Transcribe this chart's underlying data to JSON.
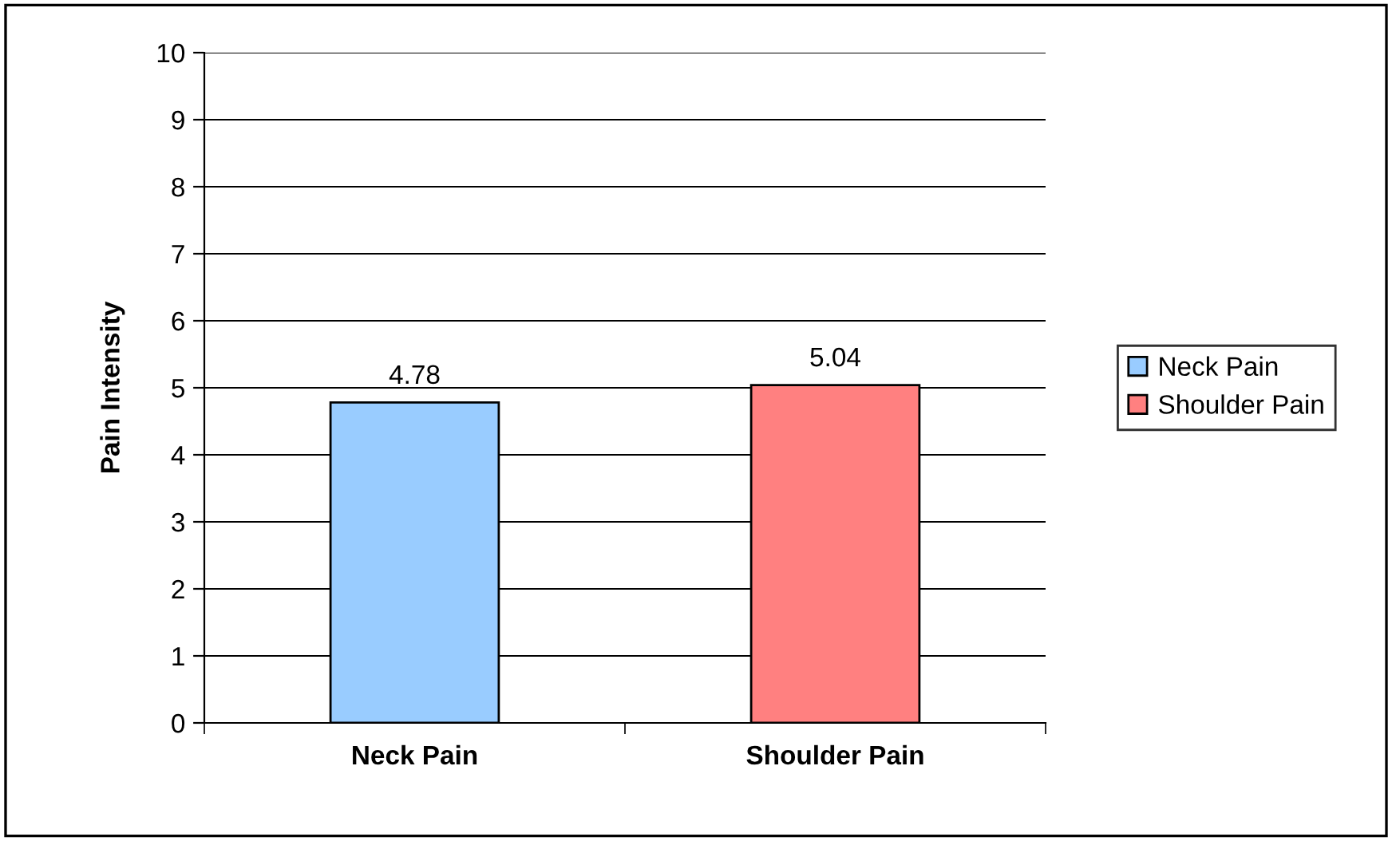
{
  "chart_data": {
    "type": "bar",
    "ylabel": "Pain Intensity",
    "categories": [
      "Neck Pain",
      "Shoulder Pain"
    ],
    "series": [
      {
        "name": "Neck Pain",
        "color": "#99ccff",
        "values": [
          4.78,
          null
        ]
      },
      {
        "name": "Shoulder Pain",
        "color": "#ff8080",
        "values": [
          null,
          5.04
        ]
      }
    ],
    "ylim": [
      0,
      10
    ],
    "yticks": [
      0,
      1,
      2,
      3,
      4,
      5,
      6,
      7,
      8,
      9,
      10
    ],
    "grid": "y",
    "legend": "right",
    "data_labels": true
  }
}
